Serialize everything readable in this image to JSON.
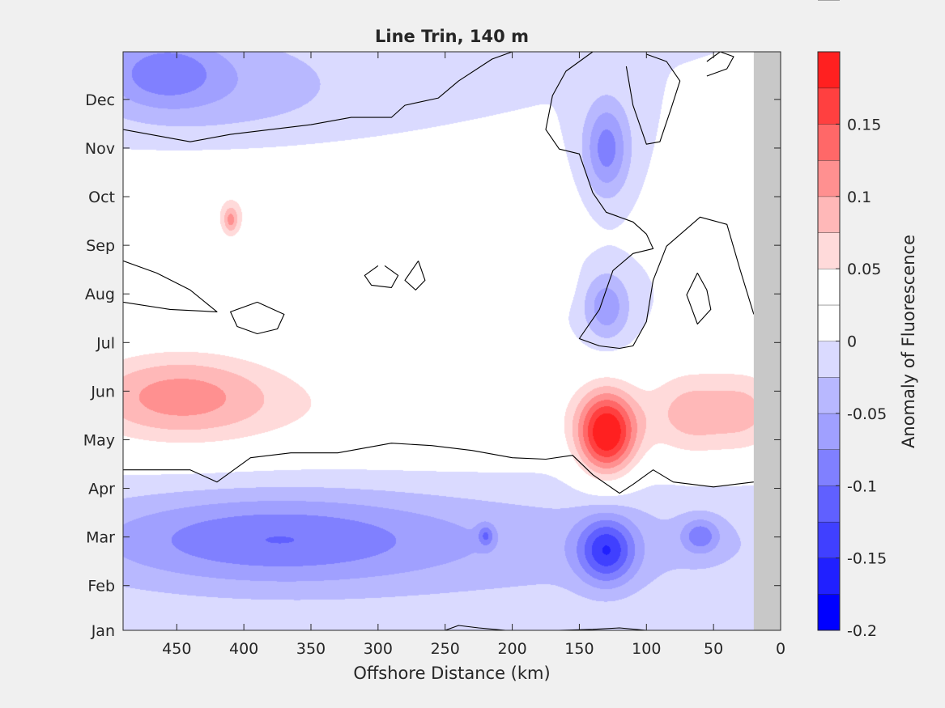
{
  "chart_data": {
    "type": "heatmap",
    "title": "Line Trin, 140 m",
    "xlabel": "Offshore Distance (km)",
    "ylabel": "",
    "x_reversed": true,
    "xlim": [
      0,
      490
    ],
    "x_ticks": [
      450,
      400,
      350,
      300,
      250,
      200,
      150,
      100,
      50,
      0
    ],
    "y_ticks": [
      "Jan",
      "Feb",
      "Mar",
      "Apr",
      "May",
      "Jun",
      "Jul",
      "Aug",
      "Sep",
      "Oct",
      "Nov",
      "Dec"
    ],
    "y_tick_values": [
      1,
      1.92,
      2.92,
      3.92,
      4.92,
      5.92,
      6.92,
      7.92,
      8.92,
      9.92,
      10.92,
      11.92
    ],
    "ylim": [
      1,
      12.9
    ],
    "no_data_x_range": [
      0,
      20
    ],
    "colorbar": {
      "label": "Anomaly of Fluorescence",
      "range": [
        -0.2,
        0.2
      ],
      "ticks": [
        "-0.2",
        "-0.15",
        "-0.1",
        "-0.05",
        "0",
        "0.05",
        "0.1",
        "0.15"
      ],
      "tick_values": [
        -0.2,
        -0.15,
        -0.1,
        -0.05,
        0,
        0.05,
        0.1,
        0.15
      ],
      "levels": [
        -0.2,
        -0.175,
        -0.15,
        -0.125,
        -0.1,
        -0.075,
        -0.05,
        -0.025,
        0,
        0.025,
        0.05,
        0.075,
        0.1,
        0.125,
        0.15,
        0.175,
        0.2
      ],
      "colors": [
        "#0000ff",
        "#2020ff",
        "#4040ff",
        "#6060ff",
        "#8080ff",
        "#a0a0ff",
        "#b8b8ff",
        "#dadaff",
        "#ffffff",
        "#ffffff",
        "#ffdada",
        "#ffb8b8",
        "#ff9090",
        "#ff6868",
        "#ff4040",
        "#ff2020",
        "#ff0000"
      ]
    },
    "anomaly_features": [
      {
        "x": 130,
        "y": 5.05,
        "value": 0.19,
        "sx": 16,
        "sy": 0.62
      },
      {
        "x": 130,
        "y": 2.65,
        "value": -0.12,
        "sx": 15,
        "sy": 0.48
      },
      {
        "x": 130,
        "y": 10.9,
        "value": -0.09,
        "sx": 12,
        "sy": 0.7
      },
      {
        "x": 130,
        "y": 7.65,
        "value": -0.07,
        "sx": 12,
        "sy": 0.5
      },
      {
        "x": 450,
        "y": 5.85,
        "value": 0.09,
        "sx": 55,
        "sy": 0.7
      },
      {
        "x": 300,
        "y": 5.55,
        "value": 0.035,
        "sx": 190,
        "sy": 0.85
      },
      {
        "x": 70,
        "y": 5.45,
        "value": 0.065,
        "sx": 22,
        "sy": 0.7
      },
      {
        "x": 25,
        "y": 5.5,
        "value": 0.065,
        "sx": 22,
        "sy": 0.7
      },
      {
        "x": 380,
        "y": 9.7,
        "value": 0.045,
        "sx": 130,
        "sy": 0.8
      },
      {
        "x": 410,
        "y": 9.45,
        "value": 0.07,
        "sx": 4,
        "sy": 0.2
      },
      {
        "x": 170,
        "y": 8.2,
        "value": 0.035,
        "sx": 10,
        "sy": 0.35
      },
      {
        "x": 380,
        "y": 2.9,
        "value": -0.07,
        "sx": 90,
        "sy": 0.65
      },
      {
        "x": 250,
        "y": 2.75,
        "value": -0.035,
        "sx": 260,
        "sy": 0.9
      },
      {
        "x": 460,
        "y": 12.5,
        "value": -0.065,
        "sx": 30,
        "sy": 0.5
      },
      {
        "x": 420,
        "y": 12.2,
        "value": -0.04,
        "sx": 80,
        "sy": 0.9
      },
      {
        "x": 60,
        "y": 2.95,
        "value": -0.07,
        "sx": 10,
        "sy": 0.25
      },
      {
        "x": 220,
        "y": 2.95,
        "value": -0.06,
        "sx": 4,
        "sy": 0.15
      }
    ],
    "zero_contours": [
      [
        [
          490,
          11.3
        ],
        [
          440,
          11.05
        ],
        [
          410,
          11.2
        ],
        [
          380,
          11.3
        ],
        [
          350,
          11.4
        ],
        [
          320,
          11.55
        ],
        [
          290,
          11.55
        ],
        [
          280,
          11.8
        ],
        [
          255,
          11.95
        ],
        [
          240,
          12.3
        ],
        [
          215,
          12.75
        ],
        [
          200,
          12.9
        ]
      ],
      [
        [
          490,
          4.3
        ],
        [
          440,
          4.3
        ],
        [
          420,
          4.05
        ],
        [
          395,
          4.55
        ],
        [
          365,
          4.65
        ],
        [
          330,
          4.65
        ],
        [
          290,
          4.85
        ],
        [
          260,
          4.8
        ],
        [
          230,
          4.7
        ],
        [
          200,
          4.55
        ],
        [
          175,
          4.52
        ],
        [
          155,
          4.6
        ],
        [
          140,
          4.2
        ],
        [
          120,
          3.82
        ],
        [
          110,
          4.0
        ],
        [
          95,
          4.3
        ],
        [
          80,
          4.05
        ],
        [
          50,
          3.95
        ],
        [
          20,
          4.05
        ]
      ],
      [
        [
          140,
          12.9
        ],
        [
          160,
          12.5
        ],
        [
          170,
          12.0
        ],
        [
          175,
          11.3
        ],
        [
          165,
          10.9
        ],
        [
          150,
          10.8
        ],
        [
          140,
          10.0
        ],
        [
          130,
          9.6
        ],
        [
          110,
          9.4
        ],
        [
          100,
          9.15
        ],
        [
          95,
          8.85
        ],
        [
          110,
          8.75
        ],
        [
          125,
          8.4
        ],
        [
          135,
          7.6
        ],
        [
          150,
          7.0
        ],
        [
          135,
          6.85
        ],
        [
          120,
          6.8
        ],
        [
          110,
          6.85
        ],
        [
          100,
          7.35
        ],
        [
          95,
          8.2
        ],
        [
          85,
          8.9
        ],
        [
          60,
          9.5
        ],
        [
          40,
          9.35
        ],
        [
          30,
          8.4
        ],
        [
          20,
          7.5
        ]
      ],
      [
        [
          100,
          12.85
        ],
        [
          85,
          12.7
        ],
        [
          75,
          12.3
        ],
        [
          82,
          11.7
        ],
        [
          90,
          11.05
        ],
        [
          100,
          11.0
        ],
        [
          110,
          11.8
        ],
        [
          115,
          12.6
        ]
      ],
      [
        [
          55,
          12.4
        ],
        [
          40,
          12.55
        ],
        [
          35,
          12.8
        ],
        [
          45,
          12.9
        ],
        [
          55,
          12.7
        ]
      ],
      [
        [
          390,
          7.75
        ],
        [
          370,
          7.5
        ],
        [
          375,
          7.2
        ],
        [
          390,
          7.1
        ],
        [
          405,
          7.25
        ],
        [
          410,
          7.55
        ],
        [
          390,
          7.75
        ]
      ],
      [
        [
          295,
          8.5
        ],
        [
          285,
          8.3
        ],
        [
          290,
          8.05
        ],
        [
          305,
          8.1
        ],
        [
          310,
          8.3
        ],
        [
          300,
          8.5
        ]
      ],
      [
        [
          270,
          8.6
        ],
        [
          265,
          8.2
        ],
        [
          272,
          8.0
        ],
        [
          280,
          8.2
        ],
        [
          270,
          8.6
        ]
      ],
      [
        [
          490,
          8.6
        ],
        [
          465,
          8.35
        ],
        [
          440,
          8.0
        ],
        [
          420,
          7.55
        ],
        [
          455,
          7.6
        ],
        [
          490,
          7.75
        ]
      ],
      [
        [
          62,
          8.35
        ],
        [
          55,
          8.0
        ],
        [
          52,
          7.6
        ],
        [
          62,
          7.3
        ],
        [
          70,
          7.9
        ],
        [
          62,
          8.35
        ]
      ],
      [
        [
          250,
          1.0
        ],
        [
          240,
          1.1
        ],
        [
          225,
          1.05
        ],
        [
          205,
          1.0
        ]
      ],
      [
        [
          165,
          1.0
        ],
        [
          140,
          1.02
        ],
        [
          120,
          1.05
        ],
        [
          100,
          1.0
        ]
      ]
    ]
  }
}
